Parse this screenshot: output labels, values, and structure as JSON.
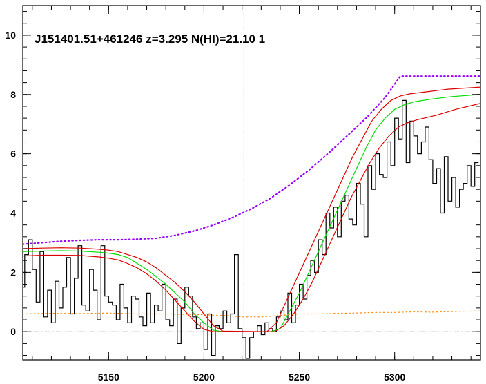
{
  "chart_data": {
    "type": "line",
    "title": "J151401.51+461246 z=3.295 N(HI)=21.10 1",
    "xlabel": "",
    "ylabel": "",
    "xlim": [
      5105,
      5345
    ],
    "ylim": [
      -0.95,
      11.0
    ],
    "x_ticks": [
      5150,
      5200,
      5250,
      5300
    ],
    "y_ticks": [
      0,
      2,
      4,
      6,
      8,
      10
    ],
    "grid": false,
    "legend": "none",
    "absorber_center": 5221,
    "reference_level": 0,
    "series": [
      {
        "key": "flux",
        "style": "step",
        "color": "#000000",
        "x": [
          5105,
          5107,
          5109,
          5111,
          5113,
          5115,
          5117,
          5119,
          5121,
          5123,
          5125,
          5127,
          5129,
          5131,
          5133,
          5135,
          5137,
          5139,
          5141,
          5143,
          5145,
          5147,
          5149,
          5151,
          5153,
          5155,
          5157,
          5159,
          5161,
          5163,
          5165,
          5167,
          5169,
          5171,
          5173,
          5175,
          5177,
          5179,
          5181,
          5183,
          5185,
          5187,
          5189,
          5191,
          5193,
          5195,
          5197,
          5199,
          5201,
          5203,
          5205,
          5207,
          5209,
          5211,
          5213,
          5215,
          5217,
          5219,
          5221,
          5223,
          5225,
          5227,
          5229,
          5231,
          5233,
          5235,
          5237,
          5239,
          5241,
          5243,
          5245,
          5247,
          5249,
          5251,
          5253,
          5255,
          5257,
          5259,
          5261,
          5263,
          5265,
          5267,
          5269,
          5271,
          5273,
          5275,
          5277,
          5279,
          5281,
          5283,
          5285,
          5287,
          5289,
          5291,
          5293,
          5295,
          5297,
          5299,
          5301,
          5303,
          5305,
          5307,
          5309,
          5311,
          5313,
          5315,
          5317,
          5319,
          5321,
          5323,
          5325,
          5327,
          5329,
          5331,
          5333,
          5335,
          5337,
          5339,
          5341,
          5343
        ],
        "y": [
          1.5,
          2.6,
          3.1,
          2.1,
          1.0,
          2.7,
          0.5,
          1.4,
          0.3,
          1.7,
          0.8,
          1.5,
          2.5,
          0.6,
          1.8,
          2.9,
          0.9,
          0.7,
          2.1,
          1.4,
          0.4,
          2.9,
          1.2,
          1.0,
          0.9,
          0.4,
          1.6,
          0.8,
          0.3,
          1.2,
          1.1,
          0.5,
          0.2,
          1.3,
          0.3,
          0.9,
          0.7,
          1.6,
          0.4,
          0.2,
          1.1,
          -0.4,
          0.8,
          1.5,
          1.2,
          0.5,
          0.1,
          0.3,
          -0.6,
          0.6,
          -0.8,
          0.2,
          0.1,
          0.7,
          0.3,
          0.6,
          2.6,
          0.1,
          -0.2,
          -0.9,
          -0.2,
          0.0,
          0.2,
          -0.1,
          0.3,
          0.1,
          0.0,
          0.5,
          0.7,
          0.4,
          1.3,
          0.3,
          0.9,
          1.6,
          1.1,
          1.9,
          2.4,
          2.0,
          3.1,
          2.6,
          4.0,
          3.5,
          4.2,
          3.2,
          4.4,
          4.6,
          3.8,
          3.6,
          5.0,
          4.3,
          3.2,
          5.6,
          4.8,
          6.0,
          5.3,
          5.2,
          6.4,
          5.6,
          7.2,
          6.5,
          7.8,
          5.7,
          7.1,
          6.6,
          6.0,
          6.4,
          6.9,
          5.8,
          5.0,
          5.5,
          4.0,
          5.9,
          4.4,
          5.2,
          4.2,
          4.8,
          5.0,
          5.6,
          4.9,
          5.7
        ]
      },
      {
        "key": "model",
        "style": "line",
        "color": "#00dd00",
        "x": [
          5105,
          5115,
          5125,
          5135,
          5145,
          5150,
          5155,
          5160,
          5165,
          5170,
          5175,
          5180,
          5185,
          5190,
          5195,
          5200,
          5205,
          5210,
          5235,
          5240,
          5245,
          5250,
          5255,
          5260,
          5265,
          5270,
          5275,
          5280,
          5285,
          5290,
          5295,
          5300,
          5305,
          5310,
          5320,
          5330,
          5345
        ],
        "y": [
          2.7,
          2.72,
          2.73,
          2.72,
          2.68,
          2.65,
          2.6,
          2.5,
          2.3,
          2.1,
          1.85,
          1.6,
          1.3,
          1.0,
          0.6,
          0.3,
          0.05,
          0.0,
          0.0,
          0.1,
          0.7,
          1.3,
          2.0,
          2.7,
          3.4,
          4.1,
          4.8,
          5.5,
          6.2,
          6.8,
          7.2,
          7.5,
          7.65,
          7.75,
          7.85,
          7.93,
          8.0
        ]
      },
      {
        "key": "model_upper",
        "style": "line",
        "color": "#dd0000",
        "x": [
          5105,
          5115,
          5125,
          5135,
          5145,
          5150,
          5155,
          5160,
          5165,
          5170,
          5175,
          5180,
          5185,
          5190,
          5195,
          5200,
          5205,
          5210,
          5233,
          5238,
          5243,
          5248,
          5253,
          5258,
          5263,
          5268,
          5273,
          5278,
          5283,
          5288,
          5293,
          5298,
          5303,
          5308,
          5318,
          5328,
          5345
        ],
        "y": [
          2.8,
          2.82,
          2.83,
          2.82,
          2.78,
          2.75,
          2.7,
          2.6,
          2.5,
          2.35,
          2.15,
          1.9,
          1.65,
          1.35,
          1.0,
          0.6,
          0.2,
          0.02,
          0.0,
          0.3,
          1.0,
          1.7,
          2.4,
          3.1,
          3.8,
          4.5,
          5.2,
          5.9,
          6.5,
          7.1,
          7.5,
          7.8,
          7.95,
          8.02,
          8.1,
          8.18,
          8.25
        ]
      },
      {
        "key": "model_lower",
        "style": "line",
        "color": "#dd0000",
        "x": [
          5105,
          5115,
          5125,
          5135,
          5145,
          5150,
          5155,
          5160,
          5165,
          5170,
          5175,
          5180,
          5185,
          5190,
          5195,
          5200,
          5205,
          5212,
          5237,
          5242,
          5247,
          5252,
          5257,
          5262,
          5267,
          5272,
          5277,
          5282,
          5287,
          5292,
          5297,
          5302,
          5307,
          5312,
          5322,
          5332,
          5345
        ],
        "y": [
          2.55,
          2.58,
          2.58,
          2.57,
          2.52,
          2.48,
          2.42,
          2.3,
          2.15,
          1.95,
          1.7,
          1.4,
          1.05,
          0.7,
          0.35,
          0.08,
          0.0,
          0.0,
          0.0,
          0.2,
          0.6,
          1.1,
          1.7,
          2.4,
          3.1,
          3.8,
          4.5,
          5.1,
          5.7,
          6.2,
          6.6,
          6.9,
          7.05,
          7.15,
          7.3,
          7.5,
          7.7
        ]
      },
      {
        "key": "continuum",
        "style": "dotted",
        "color": "#9900ff",
        "x": [
          5105,
          5115,
          5125,
          5135,
          5145,
          5155,
          5165,
          5175,
          5185,
          5195,
          5205,
          5215,
          5225,
          5235,
          5245,
          5255,
          5265,
          5275,
          5285,
          5295,
          5303,
          5310,
          5320,
          5330,
          5345
        ],
        "y": [
          2.95,
          3.0,
          3.05,
          3.08,
          3.1,
          3.1,
          3.12,
          3.15,
          3.25,
          3.4,
          3.6,
          3.85,
          4.15,
          4.5,
          4.95,
          5.45,
          6.0,
          6.6,
          7.2,
          7.9,
          8.62,
          8.62,
          8.62,
          8.62,
          8.62
        ]
      },
      {
        "key": "error",
        "style": "dotted",
        "color": "#ff8800",
        "x": [
          5105,
          5120,
          5135,
          5150,
          5165,
          5180,
          5195,
          5210,
          5220,
          5230,
          5240,
          5250,
          5260,
          5270,
          5280,
          5290,
          5300,
          5310,
          5320,
          5330,
          5345
        ],
        "y": [
          0.6,
          0.62,
          0.61,
          0.63,
          0.6,
          0.6,
          0.58,
          0.55,
          0.5,
          0.5,
          0.55,
          0.6,
          0.6,
          0.62,
          0.63,
          0.65,
          0.65,
          0.67,
          0.66,
          0.68,
          0.7
        ]
      }
    ]
  }
}
